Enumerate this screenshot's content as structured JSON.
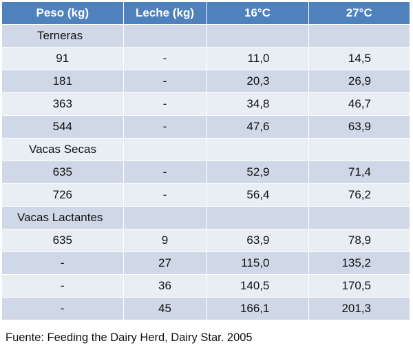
{
  "table": {
    "headers": [
      "Peso (kg)",
      "Leche (kg)",
      "16°C",
      "27°C"
    ],
    "rows": [
      {
        "type": "section",
        "label": "Terneras"
      },
      {
        "type": "data",
        "cells": [
          "91",
          "-",
          "11,0",
          "14,5"
        ]
      },
      {
        "type": "data",
        "cells": [
          "181",
          "-",
          "20,3",
          "26,9"
        ]
      },
      {
        "type": "data",
        "cells": [
          "363",
          "-",
          "34,8",
          "46,7"
        ]
      },
      {
        "type": "data",
        "cells": [
          "544",
          "-",
          "47,6",
          "63,9"
        ]
      },
      {
        "type": "section",
        "label": "Vacas Secas"
      },
      {
        "type": "data",
        "cells": [
          "635",
          "-",
          "52,9",
          "71,4"
        ]
      },
      {
        "type": "data",
        "cells": [
          "726",
          "-",
          "56,4",
          "76,2"
        ]
      },
      {
        "type": "section",
        "label": "Vacas Lactantes"
      },
      {
        "type": "data",
        "cells": [
          "635",
          "9",
          "63,9",
          "78,9"
        ]
      },
      {
        "type": "data",
        "cells": [
          "-",
          "27",
          "115,0",
          "135,2"
        ]
      },
      {
        "type": "data",
        "cells": [
          "-",
          "36",
          "140,5",
          "170,5"
        ]
      },
      {
        "type": "data",
        "cells": [
          "-",
          "45",
          "166,1",
          "201,3"
        ]
      }
    ]
  },
  "colors": {
    "header_bg": "#4f81bd",
    "row_dark": "#d0d8e8",
    "row_light": "#e9edf4"
  },
  "source": "Fuente: Feeding the Dairy Herd, Dairy Star. 2005"
}
